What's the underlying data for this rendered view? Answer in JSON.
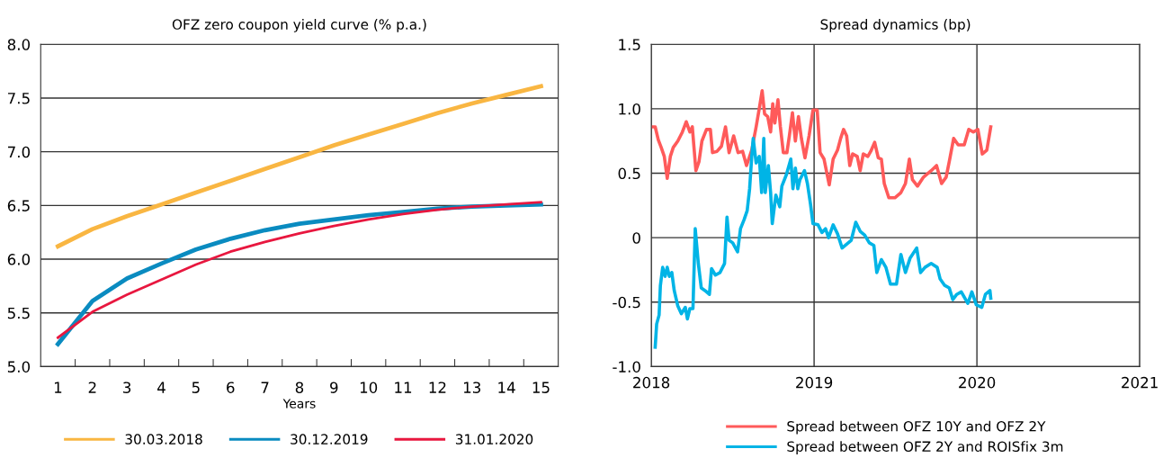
{
  "chart_data": [
    {
      "type": "line",
      "title": "OFZ zero coupon yield curve (% p.a.)",
      "xlabel": "Years",
      "categories": [
        "1",
        "2",
        "3",
        "4",
        "5",
        "6",
        "7",
        "8",
        "9",
        "10",
        "11",
        "12",
        "13",
        "14",
        "15"
      ],
      "ylim": [
        5.0,
        8.0
      ],
      "yticks": [
        {
          "value": 5.0,
          "label": "5.0"
        },
        {
          "value": 5.5,
          "label": "5.5"
        },
        {
          "value": 6.0,
          "label": "6.0"
        },
        {
          "value": 6.5,
          "label": "6.5"
        },
        {
          "value": 7.0,
          "label": "7.0"
        },
        {
          "value": 7.5,
          "label": "7.5"
        },
        {
          "value": 8.0,
          "label": "8.0"
        }
      ],
      "grid": "y",
      "legend": "bottom",
      "marker": "none",
      "line_style": "solid",
      "series": [
        {
          "name": "30.03.2018",
          "color": "#f9b642",
          "values": [
            6.12,
            6.28,
            6.4,
            6.51,
            6.62,
            6.73,
            6.84,
            6.95,
            7.06,
            7.16,
            7.26,
            7.36,
            7.45,
            7.53,
            7.61
          ]
        },
        {
          "name": "30.12.2019",
          "color": "#0a8bc0",
          "values": [
            5.21,
            5.61,
            5.82,
            5.96,
            6.09,
            6.19,
            6.27,
            6.33,
            6.37,
            6.41,
            6.44,
            6.47,
            6.49,
            6.5,
            6.51
          ]
        },
        {
          "name": "31.01.2020",
          "color": "#e8173f",
          "values": [
            5.27,
            5.51,
            5.67,
            5.81,
            5.95,
            6.07,
            6.16,
            6.24,
            6.31,
            6.37,
            6.42,
            6.46,
            6.49,
            6.51,
            6.53
          ]
        }
      ]
    },
    {
      "type": "line",
      "title": "Spread dynamics (bp)",
      "xlim": [
        2018,
        2021
      ],
      "xticks": [
        2018,
        2019,
        2020,
        2021
      ],
      "ylim": [
        -1.0,
        1.5
      ],
      "yticks": [
        {
          "value": -1.0,
          "label": "-1.0"
        },
        {
          "value": -0.5,
          "label": "-0.5"
        },
        {
          "value": 0,
          "label": "0"
        },
        {
          "value": 0.5,
          "label": "0.5"
        },
        {
          "value": 1.0,
          "label": "1.0"
        },
        {
          "value": 1.5,
          "label": "1.5"
        }
      ],
      "grid": true,
      "legend": "bottom",
      "marker": "none",
      "line_style": "solid",
      "series": [
        {
          "name": "Spread between OFZ 10Y and OFZ 2Y",
          "color": "#ff5a5a",
          "x": [
            2018.006,
            2018.024,
            2018.043,
            2018.061,
            2018.08,
            2018.098,
            2018.117,
            2018.135,
            2018.163,
            2018.191,
            2018.215,
            2018.237,
            2018.252,
            2018.274,
            2018.293,
            2018.311,
            2018.339,
            2018.363,
            2018.376,
            2018.404,
            2018.431,
            2018.456,
            2018.478,
            2018.506,
            2018.533,
            2018.561,
            2018.585,
            2018.617,
            2018.644,
            2018.667,
            2018.681,
            2018.696,
            2018.715,
            2018.733,
            2018.746,
            2018.759,
            2018.778,
            2018.793,
            2018.811,
            2018.833,
            2018.848,
            2018.867,
            2018.885,
            2018.904,
            2018.922,
            2018.944,
            2018.969,
            2018.993,
            2019.019,
            2019.037,
            2019.061,
            2019.093,
            2019.117,
            2019.144,
            2019.163,
            2019.181,
            2019.2,
            2019.219,
            2019.237,
            2019.265,
            2019.283,
            2019.302,
            2019.33,
            2019.348,
            2019.372,
            2019.394,
            2019.413,
            2019.431,
            2019.459,
            2019.496,
            2019.533,
            2019.561,
            2019.585,
            2019.604,
            2019.635,
            2019.672,
            2019.719,
            2019.752,
            2019.783,
            2019.811,
            2019.833,
            2019.857,
            2019.885,
            2019.922,
            2019.95,
            2019.978,
            2020.006,
            2020.033,
            2020.061,
            2020.085
          ],
          "values": [
            0.86,
            0.86,
            0.76,
            0.7,
            0.63,
            0.46,
            0.63,
            0.7,
            0.75,
            0.82,
            0.9,
            0.82,
            0.86,
            0.52,
            0.59,
            0.75,
            0.84,
            0.84,
            0.66,
            0.67,
            0.71,
            0.86,
            0.66,
            0.79,
            0.66,
            0.67,
            0.56,
            0.68,
            0.86,
            1.03,
            1.14,
            0.96,
            0.94,
            0.82,
            1.04,
            0.89,
            1.07,
            0.86,
            0.66,
            0.66,
            0.79,
            0.97,
            0.75,
            0.94,
            0.77,
            0.62,
            0.79,
            0.99,
            0.99,
            0.66,
            0.61,
            0.41,
            0.61,
            0.68,
            0.77,
            0.84,
            0.79,
            0.56,
            0.65,
            0.63,
            0.52,
            0.65,
            0.63,
            0.67,
            0.74,
            0.62,
            0.61,
            0.42,
            0.31,
            0.31,
            0.35,
            0.42,
            0.61,
            0.45,
            0.4,
            0.47,
            0.52,
            0.56,
            0.42,
            0.47,
            0.61,
            0.77,
            0.72,
            0.72,
            0.84,
            0.82,
            0.84,
            0.65,
            0.68,
            0.86
          ]
        },
        {
          "name": "Spread between OFZ 2Y and ROISfix 3m",
          "color": "#00b4e6",
          "x": [
            2018.024,
            2018.033,
            2018.048,
            2018.056,
            2018.07,
            2018.085,
            2018.098,
            2018.111,
            2018.126,
            2018.141,
            2018.163,
            2018.185,
            2018.209,
            2018.222,
            2018.237,
            2018.256,
            2018.27,
            2018.289,
            2018.307,
            2018.33,
            2018.357,
            2018.37,
            2018.394,
            2018.422,
            2018.45,
            2018.465,
            2018.478,
            2018.5,
            2018.53,
            2018.548,
            2018.57,
            2018.589,
            2018.604,
            2018.617,
            2018.626,
            2018.644,
            2018.663,
            2018.678,
            2018.691,
            2018.7,
            2018.719,
            2018.733,
            2018.743,
            2018.765,
            2018.789,
            2018.802,
            2018.83,
            2018.857,
            2018.87,
            2018.885,
            2018.9,
            2018.913,
            2018.941,
            2018.959,
            2018.978,
            2018.993,
            2019.024,
            2019.048,
            2019.07,
            2019.089,
            2019.117,
            2019.144,
            2019.172,
            2019.2,
            2019.228,
            2019.256,
            2019.283,
            2019.311,
            2019.339,
            2019.367,
            2019.385,
            2019.413,
            2019.441,
            2019.469,
            2019.506,
            2019.533,
            2019.561,
            2019.589,
            2019.63,
            2019.654,
            2019.681,
            2019.719,
            2019.756,
            2019.774,
            2019.802,
            2019.83,
            2019.852,
            2019.876,
            2019.904,
            2019.944,
            2019.969,
            2019.996,
            2020.03,
            2020.052,
            2020.08,
            2020.085
          ],
          "values": [
            -0.85,
            -0.67,
            -0.6,
            -0.37,
            -0.23,
            -0.3,
            -0.23,
            -0.3,
            -0.27,
            -0.41,
            -0.53,
            -0.59,
            -0.54,
            -0.63,
            -0.55,
            -0.55,
            0.07,
            -0.2,
            -0.39,
            -0.41,
            -0.44,
            -0.24,
            -0.29,
            -0.27,
            -0.2,
            0.16,
            -0.02,
            -0.04,
            -0.11,
            0.07,
            0.14,
            0.21,
            0.38,
            0.63,
            0.77,
            0.58,
            0.63,
            0.35,
            0.77,
            0.35,
            0.56,
            0.35,
            0.11,
            0.33,
            0.24,
            0.4,
            0.49,
            0.61,
            0.38,
            0.54,
            0.38,
            0.45,
            0.52,
            0.42,
            0.26,
            0.11,
            0.1,
            0.04,
            0.07,
            0.0,
            0.1,
            0.03,
            -0.08,
            -0.05,
            -0.02,
            0.12,
            0.05,
            0.02,
            -0.04,
            -0.06,
            -0.27,
            -0.17,
            -0.23,
            -0.36,
            -0.36,
            -0.13,
            -0.27,
            -0.16,
            -0.08,
            -0.27,
            -0.23,
            -0.2,
            -0.23,
            -0.32,
            -0.37,
            -0.39,
            -0.48,
            -0.44,
            -0.42,
            -0.51,
            -0.42,
            -0.52,
            -0.54,
            -0.44,
            -0.41,
            -0.47
          ]
        }
      ]
    }
  ]
}
